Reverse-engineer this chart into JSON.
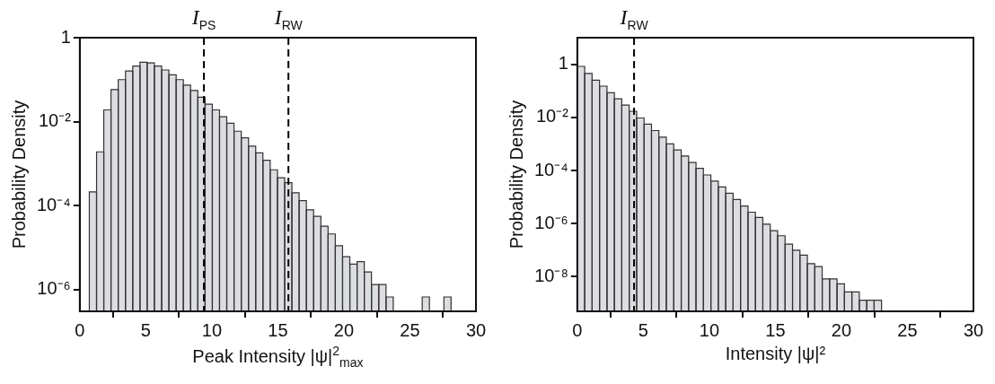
{
  "chart_data": [
    {
      "type": "histogram",
      "xlabel": "Peak Intensity |ψ|$^{2}$$_{max}$",
      "ylabel": "Probability Density",
      "color": "#dcdde0",
      "bins": [
        0.72,
        1.27,
        1.82,
        2.36,
        2.91,
        3.46,
        4.01,
        4.56,
        5.1,
        5.65,
        6.2,
        6.75,
        7.3,
        7.84,
        8.39,
        8.94,
        9.49,
        10.04,
        10.58,
        11.13,
        11.68,
        12.23,
        12.78,
        13.32,
        13.87,
        14.42,
        14.97,
        15.52,
        16.06,
        16.61,
        17.16,
        17.71,
        18.26,
        18.8,
        19.35,
        19.9,
        20.45,
        21.0,
        21.54,
        22.09,
        22.64,
        23.19,
        23.74,
        24.28,
        24.83,
        25.38,
        25.93,
        26.48,
        27.02,
        27.57,
        28.12
      ],
      "values": [
        0.00021,
        0.0019,
        0.019,
        0.058,
        0.1,
        0.16,
        0.21,
        0.26,
        0.25,
        0.21,
        0.17,
        0.13,
        0.1,
        0.074,
        0.055,
        0.038,
        0.026,
        0.019,
        0.013,
        0.0091,
        0.0059,
        0.0041,
        0.0026,
        0.0018,
        0.0012,
        0.00071,
        0.00046,
        0.00035,
        0.0002,
        0.00013,
        7.9e-05,
        5.5e-05,
        3.2e-05,
        2.1e-05,
        1.1e-05,
        6e-06,
        4e-06,
        4.6e-06,
        2.6e-06,
        1.3e-06,
        1.3e-06,
        6.6e-07,
        null,
        null,
        null,
        null,
        6.6e-07,
        null,
        null,
        6.6e-07
      ],
      "xlim": [
        0,
        30
      ],
      "xticks": [
        0,
        5,
        10,
        15,
        20,
        25,
        30
      ],
      "ylim": [
        3e-07,
        1
      ],
      "yticks": [
        {
          "value": 1,
          "label": "1"
        },
        {
          "value": 0.01,
          "label": "10⁻²"
        },
        {
          "value": 0.0001,
          "label": "10⁻⁴"
        },
        {
          "value": 1e-06,
          "label": "10⁻⁶"
        }
      ],
      "log": "y",
      "grid": false,
      "ref_lines": [
        {
          "axis": "x",
          "value": 9.4,
          "label": "I$_{PS}$",
          "line_style": "dashed",
          "color": "#000000"
        },
        {
          "axis": "x",
          "value": 15.8,
          "label": "I$_{RW}$",
          "line_style": "dashed",
          "color": "#000000"
        }
      ]
    },
    {
      "type": "histogram",
      "xlabel": "Intensity |ψ|²",
      "ylabel": "Probability Density",
      "color": "#dcdde0",
      "bins": [
        0,
        0.56,
        1.12,
        1.69,
        2.25,
        2.81,
        3.37,
        3.93,
        4.5,
        5.06,
        5.62,
        6.18,
        6.74,
        7.31,
        7.87,
        8.43,
        8.99,
        9.55,
        10.12,
        10.68,
        11.24,
        11.8,
        12.36,
        12.93,
        13.49,
        14.05,
        14.61,
        15.17,
        15.74,
        16.3,
        16.86,
        17.42,
        17.98,
        18.55,
        19.11,
        19.67,
        20.23,
        20.79,
        21.36,
        21.92,
        22.48,
        23.04
      ],
      "values": [
        0.83,
        0.45,
        0.25,
        0.15,
        0.085,
        0.05,
        0.029,
        0.017,
        0.0095,
        0.0056,
        0.0032,
        0.0018,
        0.001,
        0.00059,
        0.00035,
        0.0002,
        0.00012,
        6.8e-05,
        4e-05,
        2.4e-05,
        1.4e-05,
        8.1e-06,
        4.6e-06,
        2.7e-06,
        1.7e-06,
        9.5e-07,
        5.4e-07,
        3.5e-07,
        1.7e-07,
        1e-07,
        6.5e-08,
        3.1e-08,
        2.4e-08,
        8.3e-09,
        8.3e-09,
        5.4e-09,
        2.7e-09,
        2.7e-09,
        1.3e-09,
        1.3e-09,
        1.3e-09
      ],
      "xlim": [
        0,
        30
      ],
      "xticks": [
        0,
        5,
        10,
        15,
        20,
        25,
        30
      ],
      "ylim": [
        5e-10,
        10
      ],
      "yticks": [
        {
          "value": 1,
          "label": "1"
        },
        {
          "value": 0.01,
          "label": "10⁻²"
        },
        {
          "value": 0.0001,
          "label": "10⁻⁴"
        },
        {
          "value": 1e-06,
          "label": "10⁻⁶"
        },
        {
          "value": 1e-08,
          "label": "10⁻⁸"
        }
      ],
      "log": "y",
      "grid": false,
      "ref_lines": [
        {
          "axis": "x",
          "value": 4.3,
          "label": "I$_{RW}$",
          "line_style": "dashed",
          "color": "#000000"
        }
      ]
    }
  ]
}
